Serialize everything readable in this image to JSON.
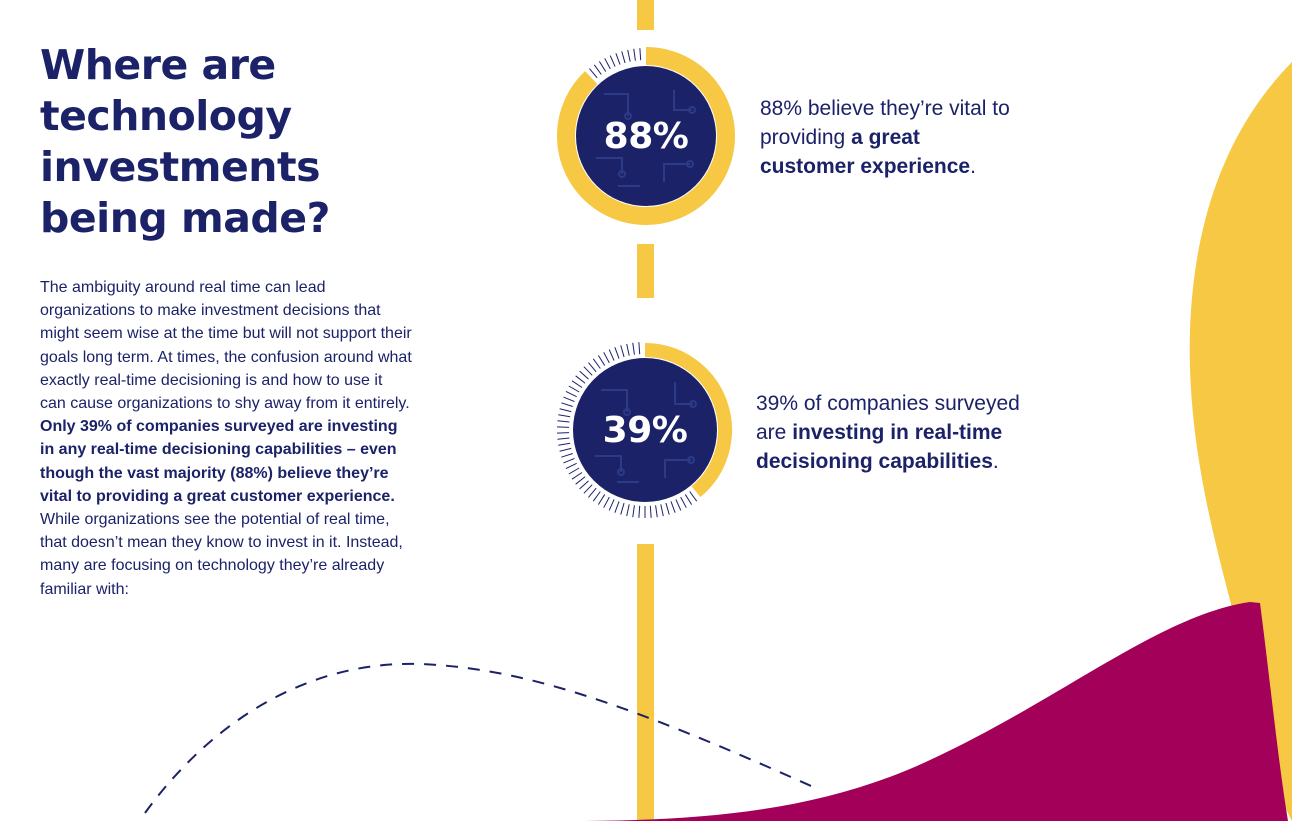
{
  "page": {
    "title_lines": [
      "Where are",
      "technology",
      "investments",
      "being made?"
    ],
    "body": {
      "intro": "The ambiguity around real time can lead organizations to make investment decisions that might seem wise at the time but will not support their goals long term. At times, the confusion around what exactly real-time decisioning is and how to use it can cause organizations to shy away from it entirely. ",
      "emphasis": "Only 39% of companies surveyed are investing in any real-time decisioning capabilities – even though the vast majority (88%) believe they’re vital to providing a great customer experience.",
      "outro": " While organizations see the potential of real time, that doesn’t mean they know to invest in it. Instead, many are focusing on technology they’re already familiar with:"
    }
  },
  "stats": [
    {
      "value": "88%",
      "percent": 88,
      "text_before": "88% believe they’re vital to providing ",
      "text_bold": "a great customer experience",
      "text_after": "."
    },
    {
      "value": "39%",
      "percent": 39,
      "text_before": "39% of companies surveyed are ",
      "text_bold": "investing in real-time decisioning capabilities",
      "text_after": "."
    }
  ],
  "colors": {
    "navy": "#1b2268",
    "yellow": "#f7c843",
    "magenta": "#a3005a",
    "white": "#ffffff"
  }
}
